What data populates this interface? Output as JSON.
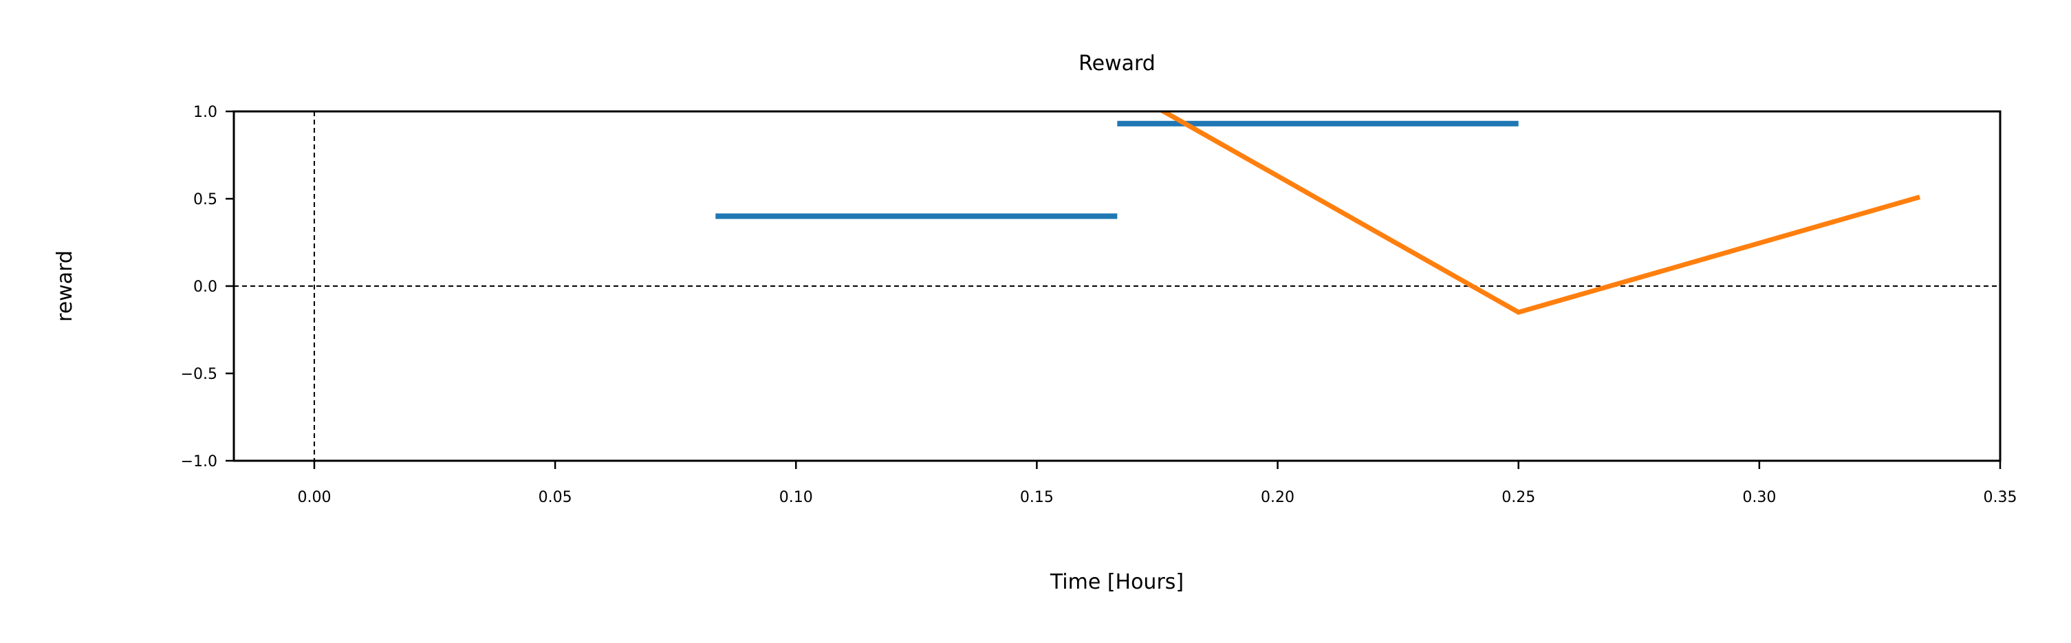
{
  "chart_data": {
    "type": "line",
    "title": "Reward",
    "xlabel": "Time [Hours]",
    "ylabel": "reward",
    "xlim": [
      -0.0167,
      0.35
    ],
    "ylim": [
      -1.0,
      1.0
    ],
    "xticks": [
      0.0,
      0.05,
      0.1,
      0.15,
      0.2,
      0.25,
      0.3,
      0.35
    ],
    "xtick_labels": [
      "0.00",
      "0.05",
      "0.10",
      "0.15",
      "0.20",
      "0.25",
      "0.30",
      "0.35"
    ],
    "yticks": [
      -1.0,
      -0.5,
      0.0,
      0.5,
      1.0
    ],
    "ytick_labels": [
      "−1.0",
      "−0.5",
      "0.0",
      "0.5",
      "1.0"
    ],
    "grid": false,
    "reference_lines": [
      {
        "orientation": "horizontal",
        "value": 0.0,
        "style": "dashed",
        "color": "#000000"
      },
      {
        "orientation": "vertical",
        "value": 0.0,
        "style": "dashed",
        "color": "#000000"
      }
    ],
    "series": [
      {
        "color": "#1f77b4",
        "style": "step-segments",
        "segments": [
          {
            "x": [
              0.0833,
              0.1667
            ],
            "y": [
              0.4,
              0.4
            ]
          },
          {
            "x": [
              0.1667,
              0.25
            ],
            "y": [
              0.93,
              0.93
            ]
          }
        ]
      },
      {
        "color": "#ff7f0e",
        "style": "line",
        "x": [
          0.1667,
          0.25,
          0.3333
        ],
        "y": [
          1.15,
          -0.15,
          0.51
        ]
      }
    ]
  }
}
